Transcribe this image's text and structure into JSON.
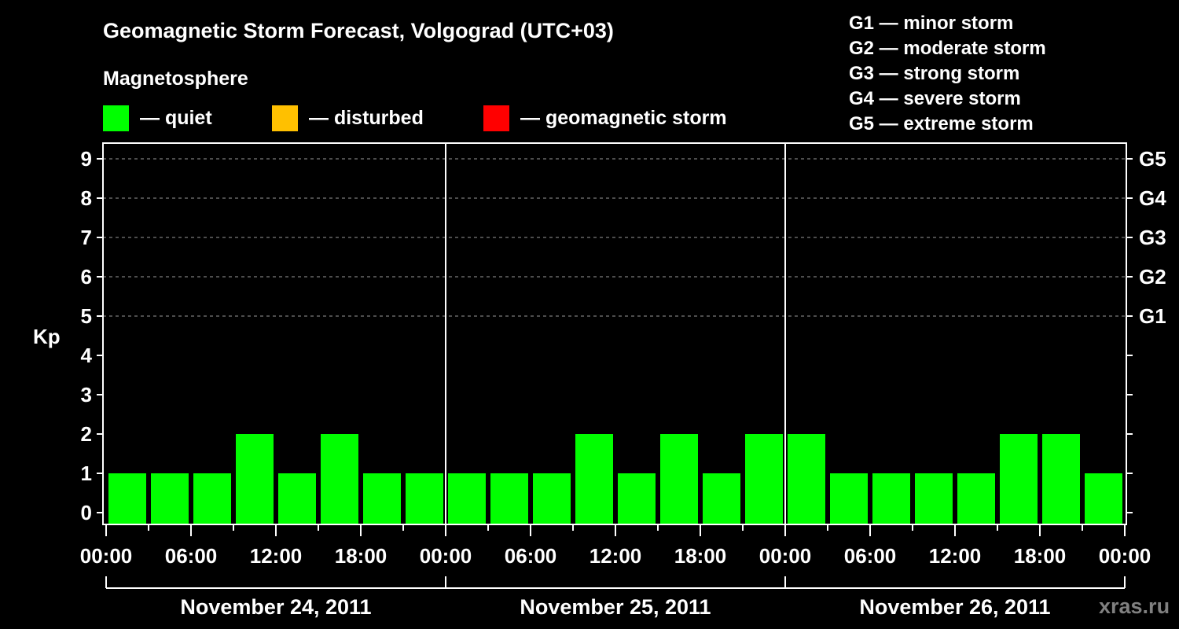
{
  "header": {
    "title": "Geomagnetic Storm Forecast, Volgograd (UTC+03)",
    "subtitle": "Magnetosphere"
  },
  "legend": {
    "items": [
      {
        "label": "— quiet",
        "color": "#00ff00"
      },
      {
        "label": "— disturbed",
        "color": "#ffc000"
      },
      {
        "label": "— geomagnetic storm",
        "color": "#ff0000"
      }
    ]
  },
  "storm_scale": {
    "items": [
      "G1 — minor storm",
      "G2 — moderate storm",
      "G3 — strong storm",
      "G4 — severe storm",
      "G5 — extreme storm"
    ]
  },
  "watermark": "xras.ru",
  "chart_data": {
    "type": "bar",
    "title": "Geomagnetic Storm Forecast, Volgograd (UTC+03)",
    "xlabel": "",
    "ylabel": "Kp",
    "ylim": [
      0,
      9
    ],
    "yticks": [
      0,
      1,
      2,
      3,
      4,
      5,
      6,
      7,
      8,
      9
    ],
    "right_axis_labels": [
      {
        "kp": 5,
        "label": "G1"
      },
      {
        "kp": 6,
        "label": "G2"
      },
      {
        "kp": 7,
        "label": "G3"
      },
      {
        "kp": 8,
        "label": "G4"
      },
      {
        "kp": 9,
        "label": "G5"
      }
    ],
    "grid": "dashed horizontal lines at Kp 5–9",
    "xtick_labels": [
      "00:00",
      "06:00",
      "12:00",
      "18:00",
      "00:00",
      "06:00",
      "12:00",
      "18:00",
      "00:00",
      "06:00",
      "12:00",
      "18:00",
      "00:00"
    ],
    "days": [
      "November 24, 2011",
      "November 25, 2011",
      "November 26, 2011"
    ],
    "categories": [
      "Nov 24 00-03",
      "Nov 24 03-06",
      "Nov 24 06-09",
      "Nov 24 09-12",
      "Nov 24 12-15",
      "Nov 24 15-18",
      "Nov 24 18-21",
      "Nov 24 21-24",
      "Nov 25 00-03",
      "Nov 25 03-06",
      "Nov 25 06-09",
      "Nov 25 09-12",
      "Nov 25 12-15",
      "Nov 25 15-18",
      "Nov 25 18-21",
      "Nov 25 21-24",
      "Nov 26 00-03",
      "Nov 26 03-06",
      "Nov 26 06-09",
      "Nov 26 09-12",
      "Nov 26 12-15",
      "Nov 26 15-18",
      "Nov 26 18-21",
      "Nov 26 21-24"
    ],
    "values": [
      1,
      1,
      1,
      2,
      1,
      2,
      1,
      1,
      1,
      1,
      1,
      2,
      1,
      2,
      1,
      2,
      2,
      1,
      1,
      1,
      1,
      2,
      2,
      1
    ],
    "status": [
      "quiet",
      "quiet",
      "quiet",
      "quiet",
      "quiet",
      "quiet",
      "quiet",
      "quiet",
      "quiet",
      "quiet",
      "quiet",
      "quiet",
      "quiet",
      "quiet",
      "quiet",
      "quiet",
      "quiet",
      "quiet",
      "quiet",
      "quiet",
      "quiet",
      "quiet",
      "quiet",
      "quiet"
    ],
    "status_colors": {
      "quiet": "#00ff00",
      "disturbed": "#ffc000",
      "storm": "#ff0000"
    },
    "legend_position": "top"
  }
}
